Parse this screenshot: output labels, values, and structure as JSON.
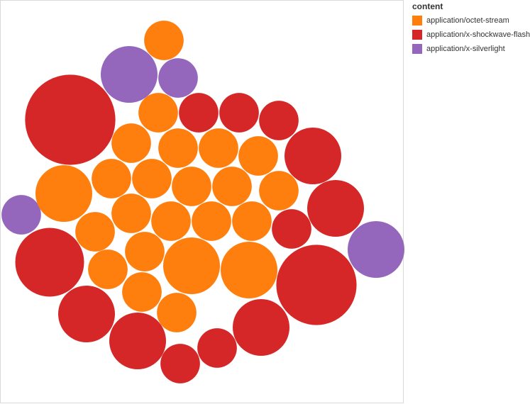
{
  "chart_data": {
    "type": "bubble",
    "legend": {
      "title": "content",
      "placement": "right",
      "entries": [
        {
          "label": "application/octet-stream",
          "color": "#ff7f0e"
        },
        {
          "label": "application/x-shockwave-flash",
          "color": "#d62728"
        },
        {
          "label": "application/x-silverlight",
          "color": "#9467bd"
        }
      ]
    },
    "bubbles": [
      {
        "category": "application/x-shockwave-flash",
        "value": 16200
      },
      {
        "category": "application/x-shockwave-flash",
        "value": 12800
      },
      {
        "category": "application/x-shockwave-flash",
        "value": 9400
      },
      {
        "category": "application/x-shockwave-flash",
        "value": 6400
      },
      {
        "category": "application/x-shockwave-flash",
        "value": 6400
      },
      {
        "category": "application/x-shockwave-flash",
        "value": 6400
      },
      {
        "category": "application/x-shockwave-flash",
        "value": 6400
      },
      {
        "category": "application/x-shockwave-flash",
        "value": 6400
      },
      {
        "category": "application/x-shockwave-flash",
        "value": 3100
      },
      {
        "category": "application/x-shockwave-flash",
        "value": 3100
      },
      {
        "category": "application/x-shockwave-flash",
        "value": 3100
      },
      {
        "category": "application/x-shockwave-flash",
        "value": 3100
      },
      {
        "category": "application/x-shockwave-flash",
        "value": 3100
      },
      {
        "category": "application/x-shockwave-flash",
        "value": 3100
      },
      {
        "category": "application/x-silverlight",
        "value": 6400
      },
      {
        "category": "application/x-silverlight",
        "value": 6400
      },
      {
        "category": "application/x-silverlight",
        "value": 3100
      },
      {
        "category": "application/x-silverlight",
        "value": 3100
      },
      {
        "category": "application/octet-stream",
        "value": 6400
      },
      {
        "category": "application/octet-stream",
        "value": 6400
      },
      {
        "category": "application/octet-stream",
        "value": 6400
      },
      {
        "category": "application/octet-stream",
        "value": 3100
      },
      {
        "category": "application/octet-stream",
        "value": 3100
      },
      {
        "category": "application/octet-stream",
        "value": 3100
      },
      {
        "category": "application/octet-stream",
        "value": 3100
      },
      {
        "category": "application/octet-stream",
        "value": 3100
      },
      {
        "category": "application/octet-stream",
        "value": 3100
      },
      {
        "category": "application/octet-stream",
        "value": 3100
      },
      {
        "category": "application/octet-stream",
        "value": 3100
      },
      {
        "category": "application/octet-stream",
        "value": 3100
      },
      {
        "category": "application/octet-stream",
        "value": 3100
      },
      {
        "category": "application/octet-stream",
        "value": 3100
      },
      {
        "category": "application/octet-stream",
        "value": 3100
      },
      {
        "category": "application/octet-stream",
        "value": 3100
      },
      {
        "category": "application/octet-stream",
        "value": 3100
      },
      {
        "category": "application/octet-stream",
        "value": 3100
      },
      {
        "category": "application/octet-stream",
        "value": 3100
      },
      {
        "category": "application/octet-stream",
        "value": 3100
      },
      {
        "category": "application/octet-stream",
        "value": 3100
      },
      {
        "category": "application/octet-stream",
        "value": 3100
      },
      {
        "category": "application/octet-stream",
        "value": 3100
      }
    ],
    "grid": false
  }
}
